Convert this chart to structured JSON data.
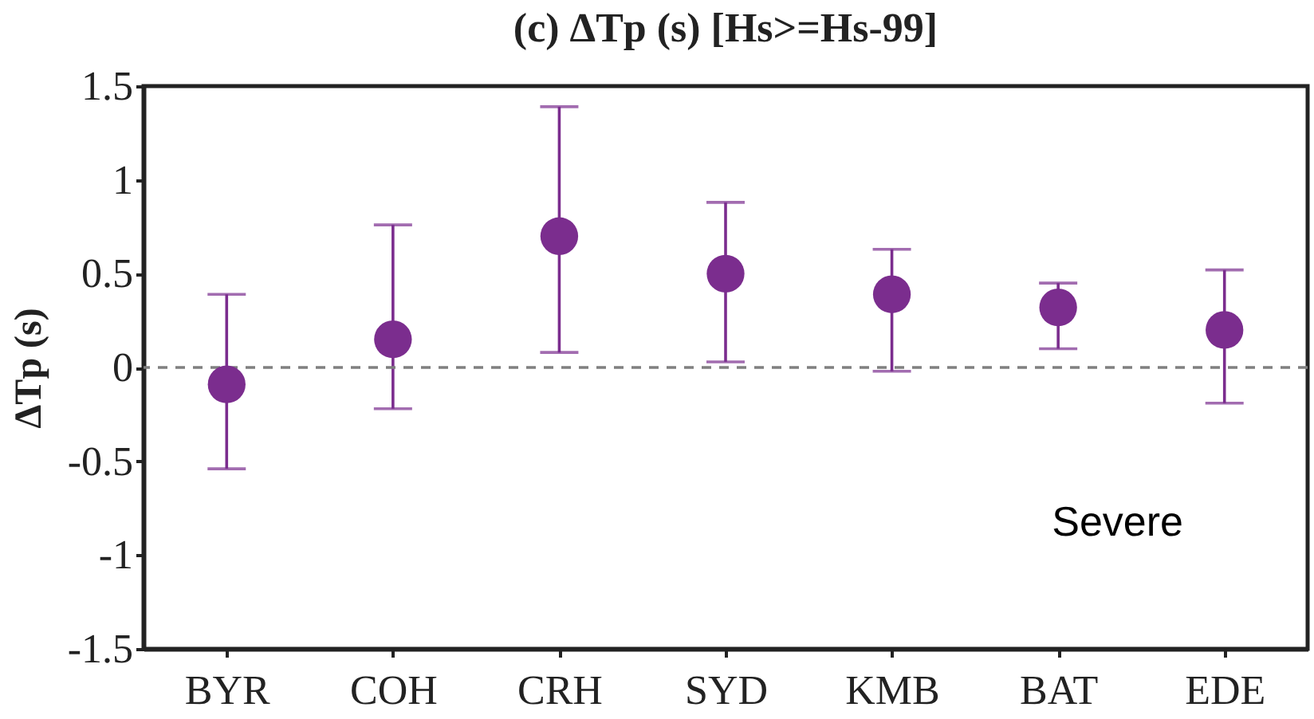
{
  "chart_data": {
    "type": "scatter",
    "title": "(c) ΔTp (s) [Hs>=Hs-99]",
    "ylabel": "ΔTp (s)",
    "categories": [
      "BYR",
      "COH",
      "CRH",
      "SYD",
      "KMB",
      "BAT",
      "EDE"
    ],
    "series": [
      {
        "color": "#7b2d8e",
        "values": [
          -0.09,
          0.15,
          0.7,
          0.5,
          0.39,
          0.32,
          0.2
        ],
        "errors": [
          [
            -0.54,
            0.39
          ],
          [
            -0.22,
            0.76
          ],
          [
            0.08,
            1.39
          ],
          [
            0.03,
            0.88
          ],
          [
            -0.02,
            0.63
          ],
          [
            0.1,
            0.45
          ],
          [
            -0.19,
            0.52
          ]
        ]
      }
    ],
    "ylim": [
      -1.5,
      1.5
    ],
    "yticks": [
      -1.5,
      -1,
      -0.5,
      0,
      0.5,
      1,
      1.5
    ],
    "ref_lines": [
      {
        "axis": "y",
        "value": 0,
        "color": "#808080",
        "line_style": "dashed"
      }
    ],
    "annotations": [
      "Severe"
    ],
    "grid": false,
    "legend": false,
    "marker": "circle"
  }
}
